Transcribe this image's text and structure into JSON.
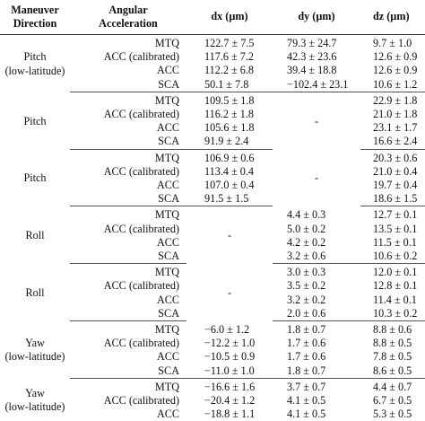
{
  "header": {
    "direction": [
      "Maneuver",
      "Direction"
    ],
    "acceleration": [
      "Angular",
      "Acceleration"
    ],
    "dx": "dx (µm)",
    "dy": "dy (µm)",
    "dz": "dz (µm)"
  },
  "groups": [
    {
      "direction": [
        "Pitch",
        "(low-latitude)"
      ],
      "dx_merged": null,
      "dy_merged": null,
      "rows": [
        {
          "acc": "MTQ",
          "dx": "122.7 ± 7.5",
          "dy": "79.3 ± 24.7",
          "dz": "9.7 ± 1.0"
        },
        {
          "acc": "ACC (calibrated)",
          "dx": "117.6 ± 7.2",
          "dy": "42.3 ± 23.6",
          "dz": "12.6 ± 0.9"
        },
        {
          "acc": "ACC",
          "dx": "112.2 ± 6.8",
          "dy": "39.4 ± 18.8",
          "dz": "12.6 ± 0.9"
        },
        {
          "acc": "SCA",
          "dx": "50.1 ± 7.8",
          "dy": "−102.4 ± 23.1",
          "dz": "10.6 ± 1.2"
        }
      ]
    },
    {
      "direction": [
        "Pitch"
      ],
      "dx_merged": null,
      "dy_merged": "-",
      "rows": [
        {
          "acc": "MTQ",
          "dx": "109.5 ± 1.8",
          "dy": "",
          "dz": "22.9 ± 1.8"
        },
        {
          "acc": "ACC (calibrated)",
          "dx": "116.2 ± 1.8",
          "dy": "",
          "dz": "21.0 ± 1.8"
        },
        {
          "acc": "ACC",
          "dx": "105.6 ± 1.8",
          "dy": "",
          "dz": "23.1 ± 1.7"
        },
        {
          "acc": "SCA",
          "dx": "91.9 ± 2.4",
          "dy": "",
          "dz": "16.6 ± 2.4"
        }
      ]
    },
    {
      "direction": [
        "Pitch"
      ],
      "dx_merged": null,
      "dy_merged": "-",
      "rows": [
        {
          "acc": "MTQ",
          "dx": "106.9 ± 0.6",
          "dy": "",
          "dz": "20.3 ± 0.6"
        },
        {
          "acc": "ACC (calibrated)",
          "dx": "113.4 ± 0.4",
          "dy": "",
          "dz": "21.0 ± 0.4"
        },
        {
          "acc": "ACC",
          "dx": "107.0 ± 0.4",
          "dy": "",
          "dz": "19.7 ± 0.4"
        },
        {
          "acc": "SCA",
          "dx": "91.5 ± 1.5",
          "dy": "",
          "dz": "18.6 ± 1.5"
        }
      ]
    },
    {
      "direction": [
        "Roll"
      ],
      "dx_merged": "-",
      "dy_merged": null,
      "rows": [
        {
          "acc": "MTQ",
          "dx": "",
          "dy": "4.4 ± 0.3",
          "dz": "12.7 ± 0.1"
        },
        {
          "acc": "ACC (calibrated)",
          "dx": "",
          "dy": "5.0 ± 0.2",
          "dz": "13.5 ± 0.1"
        },
        {
          "acc": "ACC",
          "dx": "",
          "dy": "4.2 ± 0.2",
          "dz": "11.5 ± 0.1"
        },
        {
          "acc": "SCA",
          "dx": "",
          "dy": "3.2 ± 0.6",
          "dz": "10.6 ± 0.2"
        }
      ]
    },
    {
      "direction": [
        "Roll"
      ],
      "dx_merged": "-",
      "dy_merged": null,
      "rows": [
        {
          "acc": "MTQ",
          "dx": "",
          "dy": "3.0 ± 0.3",
          "dz": "12.0 ± 0.1"
        },
        {
          "acc": "ACC (calibrated)",
          "dx": "",
          "dy": "3.5 ± 0.2",
          "dz": "12.8 ± 0.1"
        },
        {
          "acc": "ACC",
          "dx": "",
          "dy": "3.2 ± 0.2",
          "dz": "11.4 ± 0.1"
        },
        {
          "acc": "SCA",
          "dx": "",
          "dy": "2.0 ± 0.6",
          "dz": "10.3 ± 0.2"
        }
      ]
    },
    {
      "direction": [
        "Yaw",
        "(low-latitude)"
      ],
      "dx_merged": null,
      "dy_merged": null,
      "rows": [
        {
          "acc": "MTQ",
          "dx": "−6.0 ± 1.2",
          "dy": "1.8 ± 0.7",
          "dz": "8.8 ± 0.6"
        },
        {
          "acc": "ACC (calibrated)",
          "dx": "−12.2 ± 1.0",
          "dy": "1.7 ± 0.6",
          "dz": "8.8 ± 0.5"
        },
        {
          "acc": "ACC",
          "dx": "−10.5 ± 0.9",
          "dy": "1.7 ± 0.6",
          "dz": "7.8 ± 0.5"
        },
        {
          "acc": "SCA",
          "dx": "−11.0 ± 1.0",
          "dy": "1.8 ± 0.7",
          "dz": "8.6 ± 0.5"
        }
      ]
    },
    {
      "direction": [
        "Yaw",
        "(low-latitude)"
      ],
      "dx_merged": null,
      "dy_merged": null,
      "rows": [
        {
          "acc": "MTQ",
          "dx": "−16.6 ± 1.6",
          "dy": "3.7 ± 0.7",
          "dz": "4.4 ± 0.7"
        },
        {
          "acc": "ACC (calibrated)",
          "dx": "−20.4 ± 1.2",
          "dy": "4.1 ± 0.5",
          "dz": "6.7 ± 0.5"
        },
        {
          "acc": "ACC",
          "dx": "−18.8 ± 1.1",
          "dy": "4.1 ± 0.5",
          "dz": "5.3 ± 0.5"
        }
      ]
    }
  ]
}
